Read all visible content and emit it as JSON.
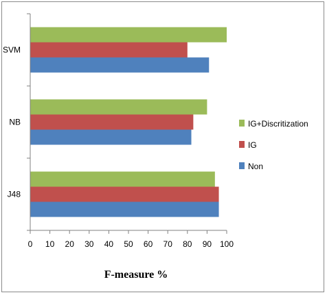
{
  "chart_data": {
    "type": "bar",
    "orientation": "horizontal",
    "title": "",
    "xlabel": "F-measure %",
    "ylabel": "",
    "categories": [
      "J48",
      "NB",
      "SVM"
    ],
    "series": [
      {
        "name": "Non",
        "color": "#4f81bd",
        "values": [
          96,
          82,
          91
        ]
      },
      {
        "name": "IG",
        "color": "#c0504d",
        "values": [
          96,
          83,
          80
        ]
      },
      {
        "name": "IG+Discritization",
        "color": "#9bbb59",
        "values": [
          94,
          90,
          100
        ]
      }
    ],
    "xlim": [
      0,
      100
    ],
    "xticks": [
      0,
      10,
      20,
      30,
      40,
      50,
      60,
      70,
      80,
      90,
      100
    ],
    "grid": false,
    "legend_position": "right",
    "legend_order": [
      "IG+Discritization",
      "IG",
      "Non"
    ]
  }
}
